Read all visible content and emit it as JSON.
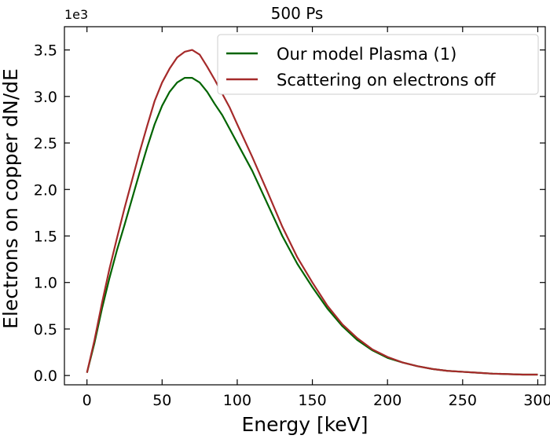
{
  "chart_data": {
    "type": "line",
    "title": "500 Ps",
    "xlabel": "Energy [keV]",
    "ylabel": "Electrons on copper dN/dE",
    "y_offset_text": "1e3",
    "xlim": [
      -15,
      305
    ],
    "ylim": [
      -0.1,
      3.75
    ],
    "x_ticks": [
      0,
      50,
      100,
      150,
      200,
      250,
      300
    ],
    "x_tick_labels": [
      "0",
      "50",
      "100",
      "150",
      "200",
      "250",
      "300"
    ],
    "y_ticks": [
      0.0,
      0.5,
      1.0,
      1.5,
      2.0,
      2.5,
      3.0,
      3.5
    ],
    "y_tick_labels": [
      "0.0",
      "0.5",
      "1.0",
      "1.5",
      "2.0",
      "2.5",
      "3.0",
      "3.5"
    ],
    "grid": false,
    "legend_position": "top-right",
    "y_units": "×10^3",
    "x": [
      0,
      5,
      10,
      15,
      20,
      25,
      30,
      35,
      40,
      45,
      50,
      55,
      60,
      65,
      70,
      75,
      80,
      85,
      90,
      95,
      100,
      110,
      120,
      130,
      140,
      150,
      160,
      170,
      180,
      190,
      200,
      210,
      220,
      230,
      240,
      250,
      260,
      270,
      280,
      290,
      300
    ],
    "series": [
      {
        "name": "Our model Plasma (1)",
        "color": "#006400",
        "values": [
          0.03,
          0.35,
          0.72,
          1.05,
          1.35,
          1.62,
          1.9,
          2.18,
          2.45,
          2.7,
          2.9,
          3.05,
          3.15,
          3.2,
          3.2,
          3.15,
          3.05,
          2.92,
          2.8,
          2.65,
          2.5,
          2.2,
          1.85,
          1.5,
          1.2,
          0.95,
          0.72,
          0.53,
          0.38,
          0.27,
          0.19,
          0.14,
          0.1,
          0.07,
          0.05,
          0.04,
          0.03,
          0.02,
          0.015,
          0.01,
          0.01
        ]
      },
      {
        "name": "Scattering on electrons off",
        "color": "#a52a2a",
        "values": [
          0.03,
          0.38,
          0.78,
          1.15,
          1.48,
          1.8,
          2.1,
          2.4,
          2.68,
          2.95,
          3.15,
          3.3,
          3.42,
          3.48,
          3.5,
          3.45,
          3.32,
          3.18,
          3.03,
          2.88,
          2.7,
          2.35,
          1.98,
          1.6,
          1.27,
          1.0,
          0.75,
          0.55,
          0.4,
          0.28,
          0.2,
          0.14,
          0.1,
          0.07,
          0.05,
          0.04,
          0.03,
          0.02,
          0.015,
          0.01,
          0.01
        ]
      }
    ]
  }
}
